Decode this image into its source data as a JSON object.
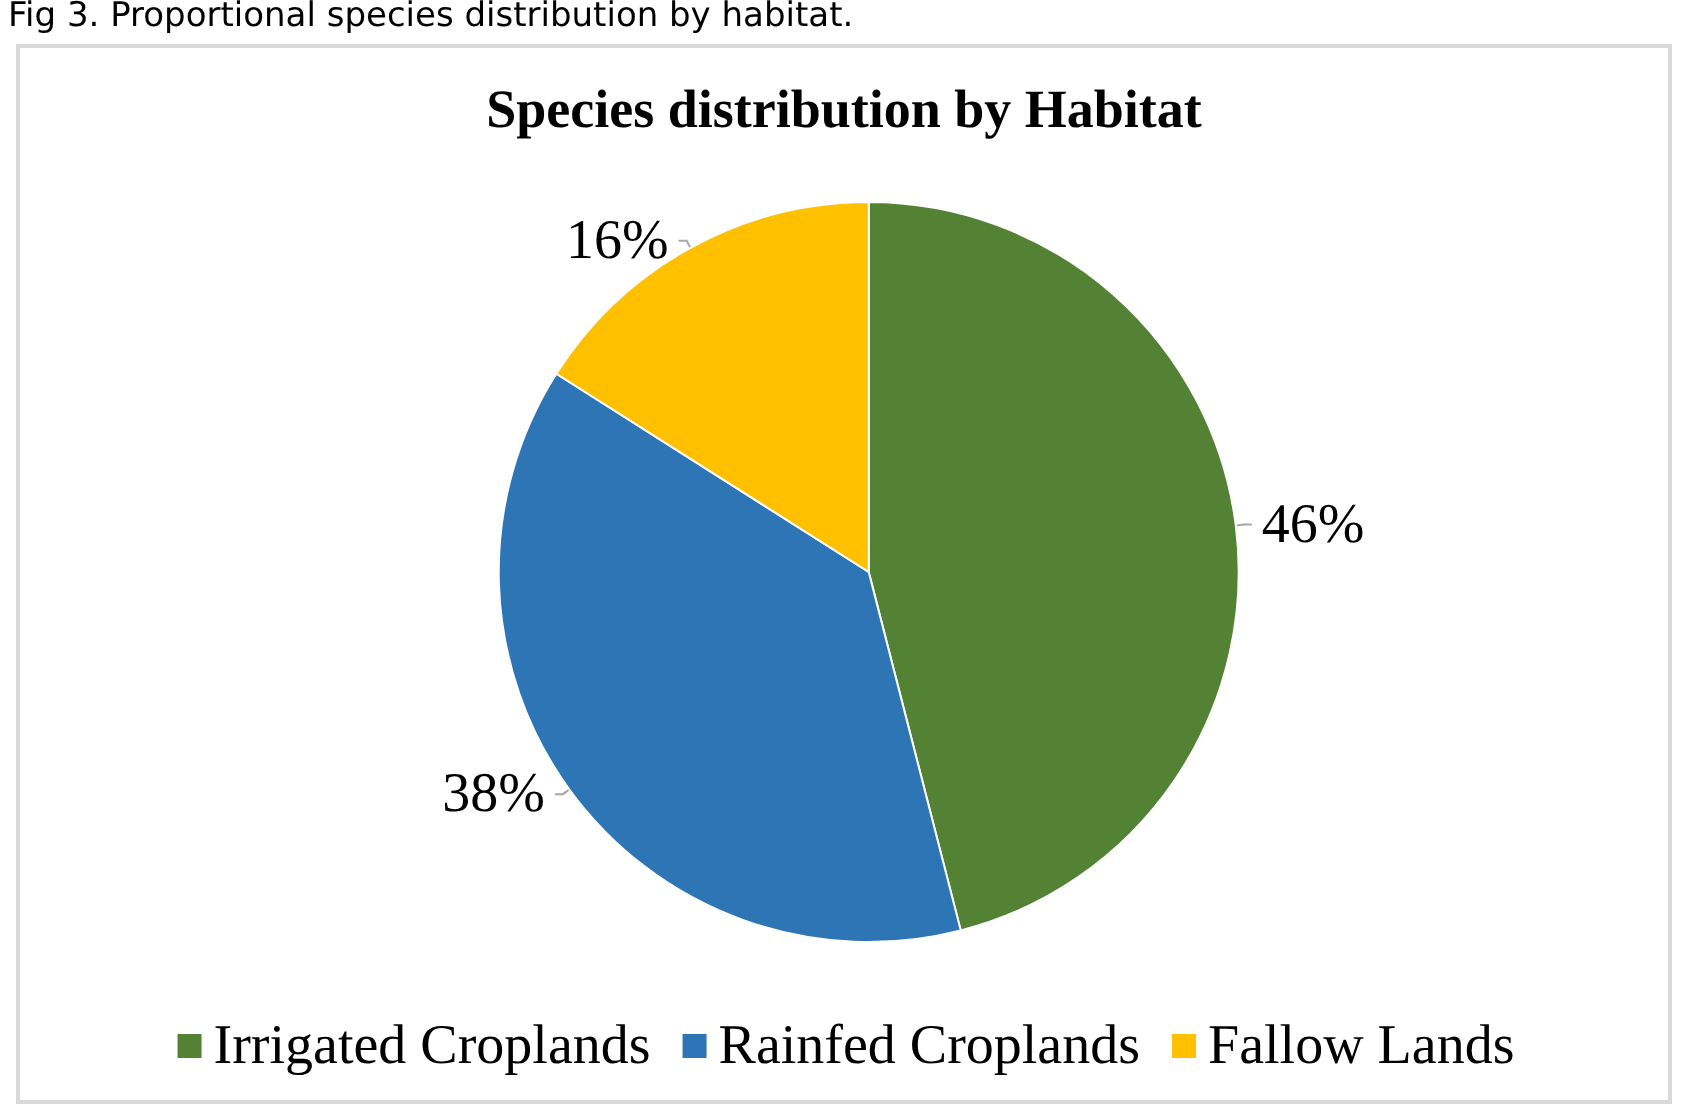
{
  "chart_data": {
    "type": "pie",
    "title": "Species distribution by Habitat",
    "annotations": [
      "Fig 3.     Proportional species distribution by habitat."
    ],
    "categories": [
      "Irrigated Croplands",
      "Rainfed Croplands",
      "Fallow Lands"
    ],
    "values": [
      46,
      38,
      16
    ],
    "colors": [
      "#548235",
      "#2e75b6",
      "#ffc000"
    ],
    "value_labels": [
      "46%",
      "38%",
      "16%"
    ],
    "legend": "bottom"
  }
}
